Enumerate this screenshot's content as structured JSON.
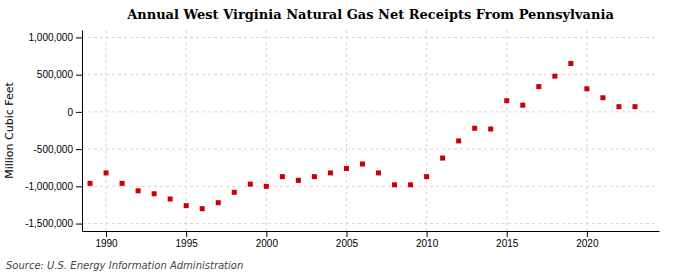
{
  "chart_data": {
    "type": "scatter",
    "title": "Annual West Virginia Natural Gas Net Receipts From Pennsylvania",
    "ylabel": "Million Cubic Feet",
    "source": "Source: U.S. Energy Information Administration",
    "x": [
      1989,
      1990,
      1991,
      1992,
      1993,
      1994,
      1995,
      1996,
      1997,
      1998,
      1999,
      2000,
      2001,
      2002,
      2003,
      2004,
      2005,
      2006,
      2007,
      2008,
      2009,
      2010,
      2011,
      2012,
      2013,
      2014,
      2015,
      2016,
      2017,
      2018,
      2019,
      2020,
      2021,
      2022,
      2023
    ],
    "values": [
      -960000,
      -820000,
      -960000,
      -1060000,
      -1100000,
      -1170000,
      -1260000,
      -1300000,
      -1220000,
      -1080000,
      -970000,
      -1000000,
      -870000,
      -920000,
      -870000,
      -820000,
      -760000,
      -700000,
      -820000,
      -980000,
      -980000,
      -870000,
      -620000,
      -390000,
      -220000,
      -230000,
      150000,
      90000,
      340000,
      480000,
      650000,
      310000,
      190000,
      70000,
      70000
    ],
    "color": "#cc0000",
    "marker": "square",
    "xlim": [
      1988.5,
      2024.5
    ],
    "ylim": [
      -1600000,
      1100000
    ],
    "xticks": [
      1990,
      1995,
      2000,
      2005,
      2010,
      2015,
      2020
    ],
    "yticks": [
      {
        "value": -1500000,
        "label": "-1,500,000"
      },
      {
        "value": -1000000,
        "label": "-1,000,000"
      },
      {
        "value": -500000,
        "label": "-500,000"
      },
      0,
      {
        "value": 500000,
        "label": "500,000"
      },
      {
        "value": 1000000,
        "label": "1,000,000"
      }
    ],
    "grid": true
  }
}
